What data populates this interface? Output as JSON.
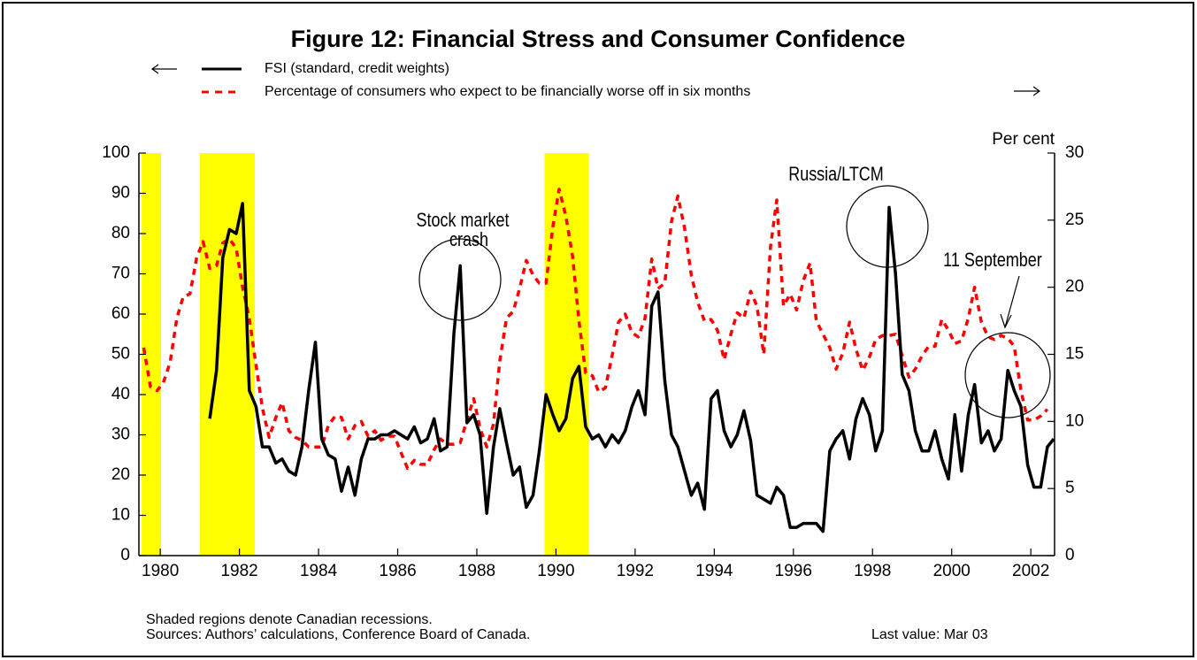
{
  "chart_data": {
    "type": "line",
    "title": "Figure 12: Financial Stress and Consumer Confidence",
    "y2_label": "Per cent",
    "notes": [
      "Shaded regions denote Canadian recessions.",
      "Sources: Authors’ calculations, Conference Board of Canada."
    ],
    "last_value": "Last value: Mar 03",
    "annotations": [
      "Stock market",
      "crash",
      "Russia/LTCM",
      "11 September"
    ],
    "recessions": [
      [
        1979.53,
        1980.02
      ],
      [
        1981.0,
        1982.39
      ],
      [
        1989.71,
        1990.83
      ]
    ],
    "recession_color": "#ffff00",
    "xlim": [
      1979.46,
      2002.6
    ],
    "xticks": [
      1980,
      1982,
      1984,
      1986,
      1988,
      1990,
      1992,
      1994,
      1996,
      1998,
      2000,
      2002
    ],
    "ylim": [
      0,
      100
    ],
    "yticks": [
      0,
      10,
      20,
      30,
      40,
      50,
      60,
      70,
      80,
      90,
      100
    ],
    "y2lim": [
      0,
      30
    ],
    "y2ticks": [
      0,
      5,
      10,
      15,
      20,
      25,
      30
    ],
    "series": [
      {
        "name": "FSI (standard, credit weights)",
        "color": "#000000",
        "dashed": false,
        "axis": "y",
        "x": [
          1981.25,
          1981.42,
          1981.58,
          1981.75,
          1981.92,
          1982.08,
          1982.25,
          1982.42,
          1982.58,
          1982.75,
          1982.92,
          1983.08,
          1983.25,
          1983.42,
          1983.58,
          1983.75,
          1983.92,
          1984.08,
          1984.25,
          1984.42,
          1984.58,
          1984.75,
          1984.92,
          1985.08,
          1985.25,
          1985.42,
          1985.58,
          1985.75,
          1985.92,
          1986.08,
          1986.25,
          1986.42,
          1986.58,
          1986.75,
          1986.92,
          1987.08,
          1987.25,
          1987.42,
          1987.58,
          1987.75,
          1987.92,
          1988.08,
          1988.25,
          1988.42,
          1988.58,
          1988.75,
          1988.92,
          1989.08,
          1989.25,
          1989.42,
          1989.58,
          1989.75,
          1989.92,
          1990.08,
          1990.25,
          1990.42,
          1990.58,
          1990.75,
          1990.92,
          1991.08,
          1991.25,
          1991.42,
          1991.58,
          1991.75,
          1991.92,
          1992.08,
          1992.25,
          1992.42,
          1992.58,
          1992.75,
          1992.92,
          1993.08,
          1993.25,
          1993.42,
          1993.58,
          1993.75,
          1993.92,
          1994.08,
          1994.25,
          1994.42,
          1994.58,
          1994.75,
          1994.92,
          1995.08,
          1995.25,
          1995.42,
          1995.58,
          1995.75,
          1995.92,
          1996.08,
          1996.25,
          1996.42,
          1996.58,
          1996.75,
          1996.92,
          1997.08,
          1997.25,
          1997.42,
          1997.58,
          1997.75,
          1997.92,
          1998.08,
          1998.25,
          1998.42,
          1998.58,
          1998.75,
          1998.92,
          1999.08,
          1999.25,
          1999.42,
          1999.58,
          1999.75,
          1999.92,
          2000.08,
          2000.25,
          2000.42,
          2000.58,
          2000.75,
          2000.92,
          2001.08,
          2001.25,
          2001.42,
          2001.58,
          2001.75,
          2001.92,
          2002.08,
          2002.25,
          2002.42,
          2002.58
        ],
        "values": [
          34,
          46,
          74,
          81,
          80,
          87.5,
          41,
          37,
          27,
          27,
          23,
          24,
          21,
          20,
          27,
          41,
          53,
          29,
          25,
          24,
          16,
          22,
          15,
          24,
          29,
          29,
          30,
          30,
          31,
          30,
          29,
          32,
          28,
          29,
          34,
          26,
          27,
          55,
          72,
          33,
          35,
          30,
          10.5,
          27,
          36.5,
          28,
          20,
          22,
          12,
          15,
          26,
          40,
          35,
          31,
          34,
          44,
          47,
          32,
          29,
          30,
          27,
          30,
          28,
          31,
          37,
          41,
          35,
          62,
          65.5,
          43.5,
          30,
          27,
          21,
          15,
          18,
          11.5,
          39,
          41,
          31,
          27,
          30,
          36,
          28.5,
          15,
          14,
          13,
          17,
          15,
          7,
          7,
          8,
          8,
          8,
          6,
          26,
          29,
          31,
          24,
          34,
          39,
          35,
          26,
          31,
          86.5,
          70,
          45,
          41,
          31,
          26,
          26,
          31,
          24,
          19,
          35,
          21,
          35,
          42.5,
          28,
          31,
          26,
          29,
          46,
          41,
          37,
          22.5,
          17,
          17,
          27,
          29
        ]
      },
      {
        "name": "Percentage of consumers who expect to be financially worse off in six months",
        "color": "#ff0000",
        "dashed": true,
        "axis": "y2",
        "x": [
          1979.58,
          1979.75,
          1979.92,
          1980.08,
          1980.25,
          1980.42,
          1980.58,
          1980.75,
          1980.92,
          1981.08,
          1981.25,
          1981.42,
          1981.58,
          1981.75,
          1981.92,
          1982.08,
          1982.25,
          1982.42,
          1982.58,
          1982.75,
          1982.92,
          1983.08,
          1983.25,
          1983.42,
          1983.58,
          1983.75,
          1983.92,
          1984.08,
          1984.25,
          1984.42,
          1984.58,
          1984.75,
          1984.92,
          1985.08,
          1985.25,
          1985.42,
          1985.58,
          1985.75,
          1985.92,
          1986.08,
          1986.25,
          1986.42,
          1986.58,
          1986.75,
          1986.92,
          1987.08,
          1987.25,
          1987.42,
          1987.58,
          1987.75,
          1987.92,
          1988.08,
          1988.25,
          1988.42,
          1988.58,
          1988.75,
          1988.92,
          1989.08,
          1989.25,
          1989.42,
          1989.58,
          1989.75,
          1989.92,
          1990.08,
          1990.25,
          1990.42,
          1990.58,
          1990.75,
          1990.92,
          1991.08,
          1991.25,
          1991.42,
          1991.58,
          1991.75,
          1991.92,
          1992.08,
          1992.25,
          1992.42,
          1992.58,
          1992.75,
          1992.92,
          1993.08,
          1993.25,
          1993.42,
          1993.58,
          1993.75,
          1993.92,
          1994.08,
          1994.25,
          1994.42,
          1994.58,
          1994.75,
          1994.92,
          1995.08,
          1995.25,
          1995.42,
          1995.58,
          1995.75,
          1995.92,
          1996.08,
          1996.25,
          1996.42,
          1996.58,
          1996.75,
          1996.92,
          1997.08,
          1997.25,
          1997.42,
          1997.58,
          1997.75,
          1997.92,
          1998.08,
          1998.25,
          1998.42,
          1998.58,
          1998.75,
          1998.92,
          1999.08,
          1999.25,
          1999.42,
          1999.58,
          1999.75,
          1999.92,
          2000.08,
          2000.25,
          2000.42,
          2000.58,
          2000.75,
          2000.92,
          2001.08,
          2001.25,
          2001.42,
          2001.58,
          2001.75,
          2001.92,
          2002.08,
          2002.25,
          2002.42
        ],
        "values": [
          15.5,
          12.6,
          12.3,
          12.9,
          14.4,
          17.7,
          19.3,
          19.5,
          22.2,
          23.4,
          21.4,
          21.6,
          23.3,
          23.6,
          22.9,
          20,
          17.7,
          14.2,
          11,
          8.8,
          10.3,
          11.4,
          9.3,
          8.8,
          8.6,
          8.1,
          8.1,
          8.1,
          9.7,
          10.4,
          10.3,
          8.7,
          9.7,
          10,
          8.9,
          9.3,
          8.6,
          8.9,
          8.9,
          7.7,
          6.5,
          7.1,
          6.8,
          6.8,
          7.9,
          8.7,
          8.3,
          8.3,
          8.4,
          10.1,
          11.7,
          9.5,
          8.1,
          9.8,
          14.5,
          17.7,
          18.2,
          19.9,
          22,
          20.9,
          20.3,
          20.3,
          24.5,
          27.3,
          25.3,
          22.3,
          17.5,
          13.6,
          13.4,
          12.2,
          12.5,
          14.9,
          17.4,
          18,
          16.6,
          16.3,
          17.7,
          22.1,
          19.9,
          20.3,
          24.9,
          26.8,
          24.4,
          20.9,
          18.9,
          17.5,
          17.6,
          16.8,
          14.6,
          16.5,
          18.1,
          17.7,
          19.7,
          18.6,
          15,
          23,
          26.5,
          18.6,
          19.5,
          18.3,
          20.5,
          21.8,
          17.5,
          16.5,
          15.5,
          13.9,
          15.1,
          17.4,
          15.4,
          13.8,
          14.8,
          16.1,
          16.4,
          16.4,
          16.5,
          14.9,
          13.3,
          13.9,
          14.9,
          15.6,
          15.6,
          17.6,
          16.8,
          15.8,
          16,
          17.7,
          20,
          17.4,
          16.3,
          16.1,
          16.4,
          16.2,
          15.6,
          12.3,
          10.1,
          10.1,
          10.4,
          10.9
        ]
      }
    ]
  }
}
